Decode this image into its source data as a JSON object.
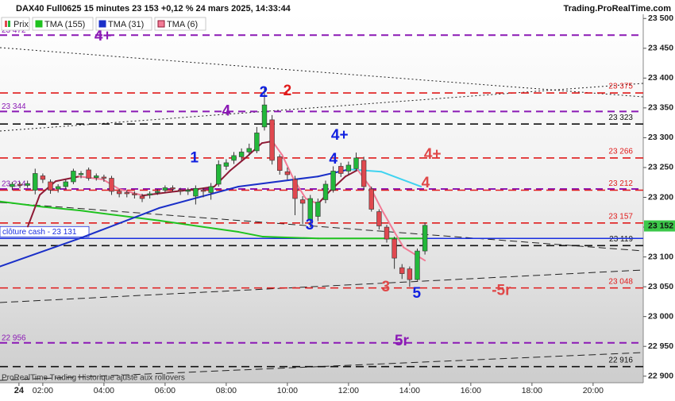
{
  "chart_data": {
    "type": "candlestick",
    "title": "DAX40 Full0625 15 minutes 23 153 +0,12 % 24 mars 2025, 14:33:44",
    "source": "Trading.ProRealTime.com",
    "footer": "ProRealTime Trading  Historique ajusté aux rollovers",
    "candle_name": "Prix",
    "up_color": "#22b83a",
    "down_color": "#e0484f",
    "x": [
      1,
      1.25,
      1.5,
      1.75,
      2,
      2.25,
      2.5,
      2.75,
      3,
      3.25,
      3.5,
      3.75,
      4,
      4.25,
      4.5,
      4.75,
      5,
      5.25,
      5.5,
      5.75,
      6,
      6.25,
      6.5,
      6.75,
      7,
      7.25,
      7.5,
      7.75,
      8,
      8.25,
      8.5,
      8.75,
      9,
      9.25,
      9.5,
      9.75,
      10,
      10.25,
      10.5,
      10.75,
      11,
      11.25,
      11.5,
      11.75,
      12,
      12.25,
      12.5,
      12.75,
      13,
      13.25,
      13.5,
      13.75,
      14,
      14.25,
      14.5
    ],
    "open": [
      23218,
      23222,
      23220,
      23212,
      23236,
      23226,
      23214,
      23218,
      23226,
      23238,
      23246,
      23233,
      23234,
      23232,
      23210,
      23208,
      23206,
      23202,
      23204,
      23208,
      23212,
      23216,
      23212,
      23210,
      23202,
      23212,
      23208,
      23222,
      23252,
      23262,
      23268,
      23276,
      23278,
      23318,
      23330,
      23268,
      23243,
      23230,
      23196,
      23162,
      23168,
      23196,
      23212,
      23252,
      23244,
      23248,
      23262,
      23214,
      23176,
      23150,
      23130,
      23082,
      23080,
      23062,
      23110
    ],
    "high": [
      23226,
      23226,
      23228,
      23248,
      23240,
      23230,
      23222,
      23230,
      23248,
      23244,
      23250,
      23240,
      23238,
      23236,
      23214,
      23212,
      23210,
      23206,
      23210,
      23214,
      23220,
      23220,
      23216,
      23216,
      23220,
      23216,
      23224,
      23262,
      23264,
      23276,
      23282,
      23290,
      23318,
      23384,
      23338,
      23272,
      23250,
      23236,
      23202,
      23204,
      23198,
      23228,
      23252,
      23258,
      23260,
      23275,
      23268,
      23218,
      23180,
      23154,
      23134,
      23088,
      23084,
      23114,
      23158
    ],
    "low": [
      23212,
      23215,
      23216,
      23205,
      23224,
      23206,
      23208,
      23214,
      23222,
      23232,
      23228,
      23228,
      23226,
      23204,
      23200,
      23200,
      23198,
      23192,
      23198,
      23204,
      23208,
      23210,
      23204,
      23204,
      23188,
      23200,
      23196,
      23218,
      23246,
      23256,
      23262,
      23270,
      23274,
      23312,
      23255,
      23238,
      23230,
      23170,
      23155,
      23150,
      23160,
      23190,
      23208,
      23234,
      23238,
      23244,
      23212,
      23176,
      23146,
      23124,
      23080,
      23063,
      23050,
      23060,
      23104
    ],
    "close": [
      23222,
      23220,
      23223,
      23240,
      23230,
      23212,
      23218,
      23226,
      23244,
      23240,
      23232,
      23236,
      23232,
      23210,
      23206,
      23206,
      23204,
      23198,
      23206,
      23210,
      23216,
      23214,
      23210,
      23212,
      23215,
      23210,
      23218,
      23255,
      23258,
      23270,
      23276,
      23282,
      23308,
      23355,
      23262,
      23245,
      23238,
      23198,
      23190,
      23198,
      23192,
      23222,
      23244,
      23240,
      23254,
      23266,
      23218,
      23180,
      23152,
      23130,
      23098,
      23072,
      23062,
      23110,
      23153
    ],
    "series": [
      {
        "name": "TMA (155)",
        "color": "#1fc21f",
        "x": [
          0.6,
          2,
          3.2,
          5.8,
          8.4,
          9.2,
          11,
          14.5
        ],
        "values": [
          23193,
          23184,
          23178,
          23161,
          23142,
          23134,
          23131,
          23131
        ]
      },
      {
        "name": "TMA (31)",
        "color": "#1a2fc8",
        "down_color": "#3fd3f0",
        "x": [
          0.6,
          3.2,
          5.8,
          8.4,
          11,
          12.03,
          12.55,
          13.07,
          14.37
        ],
        "values": [
          23084,
          23131,
          23182,
          23218,
          23235,
          23247,
          23245,
          23243,
          23218
        ]
      },
      {
        "name": "TMA (6)",
        "color": "#8e1a35",
        "down_color": "#f27a95",
        "x": [
          1.51,
          1.9,
          2.42,
          3.19,
          3.97,
          4.49,
          5.27,
          6.18,
          7.09,
          7.61,
          8.13,
          8.65,
          9.17,
          9.51,
          9.83,
          10.2,
          10.6,
          11.0,
          11.4,
          11.9,
          12.3,
          12.7,
          13.1,
          13.5,
          13.8,
          14.5
        ],
        "values": [
          23151,
          23204,
          23227,
          23235,
          23230,
          23214,
          23203,
          23209,
          23214,
          23218,
          23245,
          23267,
          23291,
          23294,
          23271,
          23231,
          23198,
          23189,
          23211,
          23235,
          23246,
          23218,
          23178,
          23142,
          23116,
          23094
        ]
      }
    ],
    "levels": [
      {
        "value": 23472,
        "label": "23 472",
        "color": "#8b19b5",
        "side": "left"
      },
      {
        "value": 23375,
        "label": "23 375",
        "color": "#e01b1b",
        "side": "right"
      },
      {
        "value": 23344,
        "label": "23 344",
        "color": "#8b19b5",
        "side": "left"
      },
      {
        "value": 23323,
        "label": "23 323",
        "color": "#111111",
        "side": "right"
      },
      {
        "value": 23266,
        "label": "23 266",
        "color": "#e01b1b",
        "side": "right"
      },
      {
        "value": 23214,
        "label": "23 214",
        "color": "#8b19b5",
        "side": "left"
      },
      {
        "value": 23212,
        "label": "23 212",
        "color": "#e01b1b",
        "side": "right"
      },
      {
        "value": 23157,
        "label": "23 157",
        "color": "#e01b1b",
        "side": "right"
      },
      {
        "value": 23119,
        "label": "23 119",
        "color": "#111111",
        "side": "right"
      },
      {
        "value": 23048,
        "label": "23 048",
        "color": "#e01b1b",
        "side": "right"
      },
      {
        "value": 22956,
        "label": "22 956",
        "color": "#8b19b5",
        "side": "left"
      },
      {
        "value": 22916,
        "label": "22 916",
        "color": "#111111",
        "side": "right"
      }
    ],
    "cash_close": {
      "value": 23131,
      "label": "clôture cash -  23 131",
      "color": "#1a2fe0"
    },
    "last_price": {
      "value": 23152,
      "label": "23 152",
      "color": "#3cc84a"
    },
    "annotations": [
      {
        "text": "4+",
        "color": "#8b19b5",
        "x": 3.97,
        "y": 23470
      },
      {
        "text": "4",
        "color": "#8b19b5",
        "x": 8.0,
        "y": 23344
      },
      {
        "text": "1",
        "color": "#1020e0",
        "x": 6.96,
        "y": 23265
      },
      {
        "text": "2",
        "color": "#1020e0",
        "x": 9.22,
        "y": 23375
      },
      {
        "text": "2",
        "color": "#e01b1b",
        "x": 10.0,
        "y": 23378
      },
      {
        "text": "4+",
        "color": "#1020e0",
        "x": 11.71,
        "y": 23303
      },
      {
        "text": "4",
        "color": "#1020e0",
        "x": 11.5,
        "y": 23263
      },
      {
        "text": "4+",
        "color": "#e04848",
        "x": 14.75,
        "y": 23271
      },
      {
        "text": "4",
        "color": "#e04848",
        "x": 14.52,
        "y": 23223
      },
      {
        "text": "3",
        "color": "#1020e0",
        "x": 10.73,
        "y": 23153
      },
      {
        "text": "3",
        "color": "#e04848",
        "x": 13.22,
        "y": 23049
      },
      {
        "text": "5",
        "color": "#1020e0",
        "x": 14.23,
        "y": 23038
      },
      {
        "text": "-5r",
        "color": "#e04848",
        "x": 17.0,
        "y": 23043
      },
      {
        "text": "5r",
        "color": "#8b19b5",
        "x": 13.74,
        "y": 22958
      }
    ],
    "xlim": [
      0.6,
      21.64
    ],
    "ylim": [
      22889,
      23507
    ],
    "xticks": [
      {
        "value": 1.22,
        "label": "24"
      },
      {
        "value": 2,
        "label": "02:00"
      },
      {
        "value": 4,
        "label": "04:00"
      },
      {
        "value": 6,
        "label": "06:00"
      },
      {
        "value": 8,
        "label": "08:00"
      },
      {
        "value": 10,
        "label": "10:00"
      },
      {
        "value": 12,
        "label": "12:00"
      },
      {
        "value": 14,
        "label": "14:00"
      },
      {
        "value": 16,
        "label": "16:00"
      },
      {
        "value": 18,
        "label": "18:00"
      },
      {
        "value": 20,
        "label": "20:00"
      }
    ],
    "yticks": [
      {
        "value": 22900,
        "label": "22 900"
      },
      {
        "value": 22950,
        "label": "22 950"
      },
      {
        "value": 23000,
        "label": "23 000"
      },
      {
        "value": 23050,
        "label": "23 050"
      },
      {
        "value": 23100,
        "label": "23 100"
      },
      {
        "value": 23150,
        "label": "23 150"
      },
      {
        "value": 23200,
        "label": "23 200"
      },
      {
        "value": 23250,
        "label": "23 250"
      },
      {
        "value": 23300,
        "label": "23 300"
      },
      {
        "value": 23350,
        "label": "23 350"
      },
      {
        "value": 23400,
        "label": "23 400"
      },
      {
        "value": 23450,
        "label": "23 450"
      },
      {
        "value": 23500,
        "label": "23 500"
      }
    ]
  }
}
